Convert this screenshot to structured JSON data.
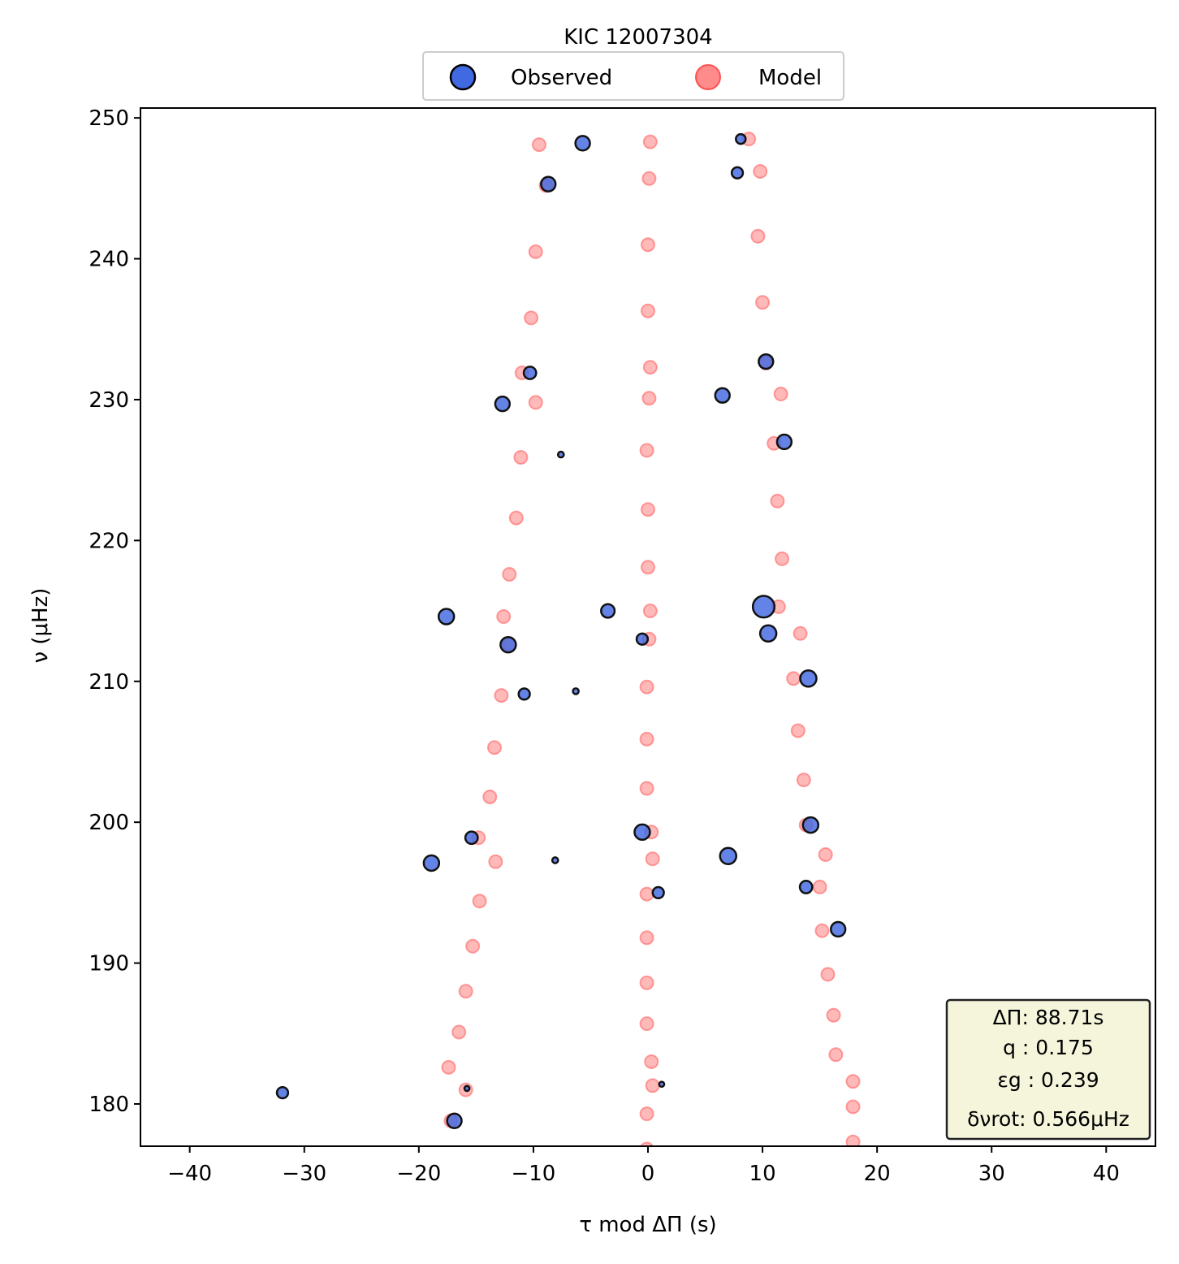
{
  "chart_data": {
    "type": "scatter",
    "title": "KIC 12007304",
    "xlabel": "τ mod ΔΠ (s)",
    "ylabel": "ν (μHz)",
    "xlim": [
      -44.3,
      44.3
    ],
    "ylim": [
      177,
      250.7
    ],
    "xticks": [
      -40,
      -30,
      -20,
      -10,
      0,
      10,
      20,
      30,
      40
    ],
    "xtick_labels": [
      "−40",
      "−30",
      "−20",
      "−10",
      "0",
      "10",
      "20",
      "30",
      "40"
    ],
    "yticks": [
      180,
      190,
      200,
      210,
      220,
      230,
      240,
      250
    ],
    "ytick_labels": [
      "180",
      "190",
      "200",
      "210",
      "220",
      "230",
      "240",
      "250"
    ],
    "grid": false,
    "legend": {
      "placement": "top-center",
      "entries": [
        "Observed",
        "Model"
      ]
    },
    "colors": {
      "observed_fill": "#4169e1",
      "observed_edge": "#000000",
      "model_fill": "#ff6464",
      "annotation_bg": "#f5f5dc"
    },
    "annotation": {
      "lines": [
        "ΔΠ: 88.71s",
        "q :  0.175",
        "εg : 0.239",
        "δνrot: 0.566μHz"
      ],
      "placement": "bottom-right"
    },
    "series": [
      {
        "name": "Observed",
        "points": [
          {
            "x": -5.7,
            "y": 248.2,
            "s": 3
          },
          {
            "x": 8.1,
            "y": 248.5,
            "s": 1
          },
          {
            "x": -8.7,
            "y": 245.3,
            "s": 3
          },
          {
            "x": 7.8,
            "y": 246.1,
            "s": 1.5
          },
          {
            "x": 10.3,
            "y": 232.7,
            "s": 3
          },
          {
            "x": -10.3,
            "y": 231.9,
            "s": 2
          },
          {
            "x": -12.7,
            "y": 229.7,
            "s": 3
          },
          {
            "x": 6.5,
            "y": 230.3,
            "s": 3
          },
          {
            "x": 11.9,
            "y": 227.0,
            "s": 3
          },
          {
            "x": -7.6,
            "y": 226.1,
            "s": 0.8
          },
          {
            "x": 10.1,
            "y": 215.3,
            "s": 8
          },
          {
            "x": -17.6,
            "y": 214.6,
            "s": 3.5
          },
          {
            "x": -3.5,
            "y": 215.0,
            "s": 2.5
          },
          {
            "x": 10.5,
            "y": 213.4,
            "s": 4
          },
          {
            "x": -12.2,
            "y": 212.6,
            "s": 3.5
          },
          {
            "x": -0.5,
            "y": 213.0,
            "s": 1.5
          },
          {
            "x": 14.0,
            "y": 210.2,
            "s": 4
          },
          {
            "x": -10.8,
            "y": 209.1,
            "s": 1.5
          },
          {
            "x": -6.3,
            "y": 209.3,
            "s": 0.8
          },
          {
            "x": 14.2,
            "y": 199.8,
            "s": 3.5
          },
          {
            "x": -0.5,
            "y": 199.3,
            "s": 3.5
          },
          {
            "x": -15.4,
            "y": 198.9,
            "s": 2
          },
          {
            "x": 7.0,
            "y": 197.6,
            "s": 4
          },
          {
            "x": -18.9,
            "y": 197.1,
            "s": 3.5
          },
          {
            "x": -8.1,
            "y": 197.3,
            "s": 0.8
          },
          {
            "x": 13.8,
            "y": 195.4,
            "s": 2
          },
          {
            "x": 0.9,
            "y": 195.0,
            "s": 1.5
          },
          {
            "x": 16.6,
            "y": 192.4,
            "s": 3
          },
          {
            "x": -31.9,
            "y": 180.8,
            "s": 1.5
          },
          {
            "x": -15.8,
            "y": 181.1,
            "s": 0.6
          },
          {
            "x": 1.2,
            "y": 181.4,
            "s": 0.6
          },
          {
            "x": -16.9,
            "y": 178.8,
            "s": 3
          }
        ]
      },
      {
        "name": "Model",
        "points": [
          {
            "x": -9.5,
            "y": 248.1
          },
          {
            "x": 0.2,
            "y": 248.3
          },
          {
            "x": 8.8,
            "y": 248.5
          },
          {
            "x": -8.9,
            "y": 245.2
          },
          {
            "x": 0.1,
            "y": 245.7
          },
          {
            "x": 9.8,
            "y": 246.2
          },
          {
            "x": -9.8,
            "y": 240.5
          },
          {
            "x": 0.0,
            "y": 241.0
          },
          {
            "x": 9.6,
            "y": 241.6
          },
          {
            "x": -10.2,
            "y": 235.8
          },
          {
            "x": 0.0,
            "y": 236.3
          },
          {
            "x": 10.0,
            "y": 236.9
          },
          {
            "x": -11.0,
            "y": 231.9
          },
          {
            "x": 0.2,
            "y": 232.3
          },
          {
            "x": 10.3,
            "y": 232.6
          },
          {
            "x": -9.8,
            "y": 229.8
          },
          {
            "x": 0.1,
            "y": 230.1
          },
          {
            "x": 11.6,
            "y": 230.4
          },
          {
            "x": -11.1,
            "y": 225.9
          },
          {
            "x": -0.1,
            "y": 226.4
          },
          {
            "x": 11.0,
            "y": 226.9
          },
          {
            "x": -11.5,
            "y": 221.6
          },
          {
            "x": 0.0,
            "y": 222.2
          },
          {
            "x": 11.3,
            "y": 222.8
          },
          {
            "x": -12.1,
            "y": 217.6
          },
          {
            "x": 0.0,
            "y": 218.1
          },
          {
            "x": 11.7,
            "y": 218.7
          },
          {
            "x": -12.6,
            "y": 214.6
          },
          {
            "x": 0.2,
            "y": 215.0
          },
          {
            "x": 11.4,
            "y": 215.3
          },
          {
            "x": -12.1,
            "y": 212.6
          },
          {
            "x": 0.1,
            "y": 213.0
          },
          {
            "x": 13.3,
            "y": 213.4
          },
          {
            "x": -12.8,
            "y": 209.0
          },
          {
            "x": -0.1,
            "y": 209.6
          },
          {
            "x": 12.7,
            "y": 210.2
          },
          {
            "x": -13.4,
            "y": 205.3
          },
          {
            "x": -0.1,
            "y": 205.9
          },
          {
            "x": 13.1,
            "y": 206.5
          },
          {
            "x": -13.8,
            "y": 201.8
          },
          {
            "x": -0.1,
            "y": 202.4
          },
          {
            "x": 13.6,
            "y": 203.0
          },
          {
            "x": -14.8,
            "y": 198.9
          },
          {
            "x": 0.3,
            "y": 199.3
          },
          {
            "x": 13.8,
            "y": 199.8
          },
          {
            "x": -13.3,
            "y": 197.2
          },
          {
            "x": 0.4,
            "y": 197.4
          },
          {
            "x": 15.5,
            "y": 197.7
          },
          {
            "x": -14.7,
            "y": 194.4
          },
          {
            "x": -0.1,
            "y": 194.9
          },
          {
            "x": 15.0,
            "y": 195.4
          },
          {
            "x": -15.3,
            "y": 191.2
          },
          {
            "x": -0.1,
            "y": 191.8
          },
          {
            "x": 15.2,
            "y": 192.3
          },
          {
            "x": -15.9,
            "y": 188.0
          },
          {
            "x": -0.1,
            "y": 188.6
          },
          {
            "x": 15.7,
            "y": 189.2
          },
          {
            "x": -16.5,
            "y": 185.1
          },
          {
            "x": -0.1,
            "y": 185.7
          },
          {
            "x": 16.2,
            "y": 186.3
          },
          {
            "x": -17.4,
            "y": 182.6
          },
          {
            "x": 0.3,
            "y": 183.0
          },
          {
            "x": 16.4,
            "y": 183.5
          },
          {
            "x": -15.9,
            "y": 181.0
          },
          {
            "x": 0.4,
            "y": 181.3
          },
          {
            "x": 17.9,
            "y": 181.6
          },
          {
            "x": -17.2,
            "y": 178.8
          },
          {
            "x": -0.1,
            "y": 179.3
          },
          {
            "x": 17.9,
            "y": 179.8
          },
          {
            "x": -0.1,
            "y": 176.8
          },
          {
            "x": 17.9,
            "y": 177.3
          }
        ]
      }
    ]
  }
}
